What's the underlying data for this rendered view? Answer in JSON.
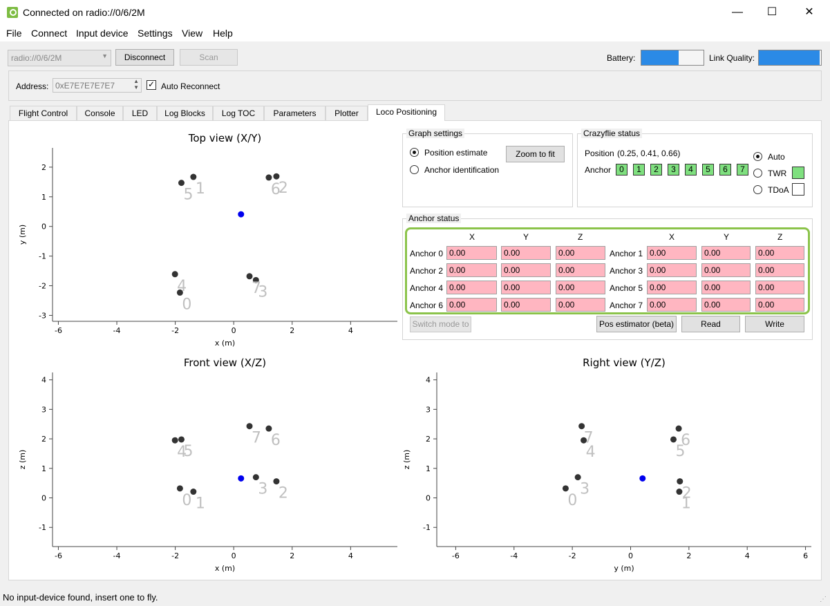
{
  "window": {
    "title": "Connected on radio://0/6/2M",
    "minimize_glyph": "—",
    "maximize_glyph": "☐",
    "close_glyph": "✕"
  },
  "menu": [
    "File",
    "Connect",
    "Input device",
    "Settings",
    "View",
    "Help"
  ],
  "toolbar": {
    "uri_value": "radio://0/6/2M",
    "disconnect_label": "Disconnect",
    "scan_label": "Scan",
    "battery_label": "Battery:",
    "battery_level": 0.6,
    "link_label": "Link Quality:",
    "link_level": 0.98,
    "address_label": "Address:",
    "address_value": "0xE7E7E7E7E7",
    "auto_reconnect_label": "Auto Reconnect",
    "auto_reconnect_checked": true
  },
  "tabs": [
    "Flight Control",
    "Console",
    "LED",
    "Log Blocks",
    "Log TOC",
    "Parameters",
    "Plotter",
    "Loco Positioning"
  ],
  "active_tab": "Loco Positioning",
  "graph_settings": {
    "title": "Graph settings",
    "position_estimate": "Position estimate",
    "anchor_identification": "Anchor identification",
    "zoom_to_fit": "Zoom to fit"
  },
  "crazyflie_status": {
    "title": "Crazyflie status",
    "position_label": "Position",
    "position_value": "(0.25, 0.41, 0.66)",
    "anchor_label": "Anchor",
    "anchors": [
      "0",
      "1",
      "2",
      "3",
      "4",
      "5",
      "6",
      "7"
    ],
    "auto_label": "Auto",
    "twr_label": "TWR",
    "tdoa_label": "TDoA"
  },
  "anchor_status": {
    "title": "Anchor status",
    "col_headers": [
      "X",
      "Y",
      "Z"
    ],
    "rows": [
      {
        "label": "Anchor 0",
        "x": "0.00",
        "y": "0.00",
        "z": "0.00"
      },
      {
        "label": "Anchor 1",
        "x": "0.00",
        "y": "0.00",
        "z": "0.00"
      },
      {
        "label": "Anchor 2",
        "x": "0.00",
        "y": "0.00",
        "z": "0.00"
      },
      {
        "label": "Anchor 3",
        "x": "0.00",
        "y": "0.00",
        "z": "0.00"
      },
      {
        "label": "Anchor 4",
        "x": "0.00",
        "y": "0.00",
        "z": "0.00"
      },
      {
        "label": "Anchor 5",
        "x": "0.00",
        "y": "0.00",
        "z": "0.00"
      },
      {
        "label": "Anchor 6",
        "x": "0.00",
        "y": "0.00",
        "z": "0.00"
      },
      {
        "label": "Anchor 7",
        "x": "0.00",
        "y": "0.00",
        "z": "0.00"
      }
    ],
    "switch_mode_label": "Switch mode to",
    "pos_estimator_label": "Pos estimator (beta)",
    "read_label": "Read",
    "write_label": "Write"
  },
  "colors": {
    "anchor_dot": "#333333",
    "position_dot": "#0000ee",
    "label": "#c0c0c0",
    "accent_border": "#8bc34a",
    "cell_bg": "#ffb6c1",
    "status_green": "#7fe07f"
  },
  "status_bar": "No input-device found, insert one to fly.",
  "chart_data": [
    {
      "type": "scatter",
      "title": "Top view (X/Y)",
      "xlabel": "x (m)",
      "ylabel": "y (m)",
      "xticks": [
        "-6",
        "-4",
        "-2",
        "0",
        "2",
        "4"
      ],
      "yticks": [
        "-3",
        "-2",
        "-1",
        "0",
        "1",
        "2"
      ],
      "xlim": [
        -6.2,
        5.6
      ],
      "ylim": [
        -3.2,
        2.65
      ],
      "anchors": [
        {
          "label": "0",
          "x": -1.84,
          "y": -2.23
        },
        {
          "label": "1",
          "x": -1.38,
          "y": 1.67
        },
        {
          "label": "2",
          "x": 1.46,
          "y": 1.69
        },
        {
          "label": "3",
          "x": 0.76,
          "y": -1.81
        },
        {
          "label": "4",
          "x": -2.01,
          "y": -1.61
        },
        {
          "label": "5",
          "x": -1.79,
          "y": 1.47
        },
        {
          "label": "6",
          "x": 1.2,
          "y": 1.65
        },
        {
          "label": "7",
          "x": 0.54,
          "y": -1.68
        }
      ],
      "position": {
        "x": 0.25,
        "y": 0.41
      }
    },
    {
      "type": "scatter",
      "title": "Front view (X/Z)",
      "xlabel": "x (m)",
      "ylabel": "z (m)",
      "xticks": [
        "-6",
        "-4",
        "-2",
        "0",
        "2",
        "4"
      ],
      "yticks": [
        "-1",
        "0",
        "1",
        "2",
        "3",
        "4"
      ],
      "xlim": [
        -6.2,
        5.6
      ],
      "ylim": [
        -1.65,
        4.25
      ],
      "anchors": [
        {
          "label": "0",
          "x": -1.84,
          "y": 0.32
        },
        {
          "label": "1",
          "x": -1.38,
          "y": 0.21
        },
        {
          "label": "2",
          "x": 1.46,
          "y": 0.56
        },
        {
          "label": "3",
          "x": 0.76,
          "y": 0.7
        },
        {
          "label": "4",
          "x": -2.01,
          "y": 1.95
        },
        {
          "label": "5",
          "x": -1.79,
          "y": 1.98
        },
        {
          "label": "6",
          "x": 1.2,
          "y": 2.35
        },
        {
          "label": "7",
          "x": 0.54,
          "y": 2.43
        }
      ],
      "position": {
        "x": 0.25,
        "y": 0.66
      }
    },
    {
      "type": "scatter",
      "title": "Right view (Y/Z)",
      "xlabel": "y (m)",
      "ylabel": "z (m)",
      "xticks": [
        "-6",
        "-4",
        "-2",
        "0",
        "2",
        "4",
        "6"
      ],
      "yticks": [
        "-1",
        "0",
        "1",
        "2",
        "3",
        "4"
      ],
      "xlim": [
        -6.65,
        6.2
      ],
      "ylim": [
        -1.65,
        4.25
      ],
      "anchors": [
        {
          "label": "0",
          "x": -2.23,
          "y": 0.32
        },
        {
          "label": "1",
          "x": 1.67,
          "y": 0.21
        },
        {
          "label": "2",
          "x": 1.69,
          "y": 0.56
        },
        {
          "label": "3",
          "x": -1.81,
          "y": 0.7
        },
        {
          "label": "4",
          "x": -1.61,
          "y": 1.95
        },
        {
          "label": "5",
          "x": 1.47,
          "y": 1.98
        },
        {
          "label": "6",
          "x": 1.65,
          "y": 2.35
        },
        {
          "label": "7",
          "x": -1.68,
          "y": 2.43
        }
      ],
      "position": {
        "x": 0.41,
        "y": 0.66
      }
    }
  ]
}
